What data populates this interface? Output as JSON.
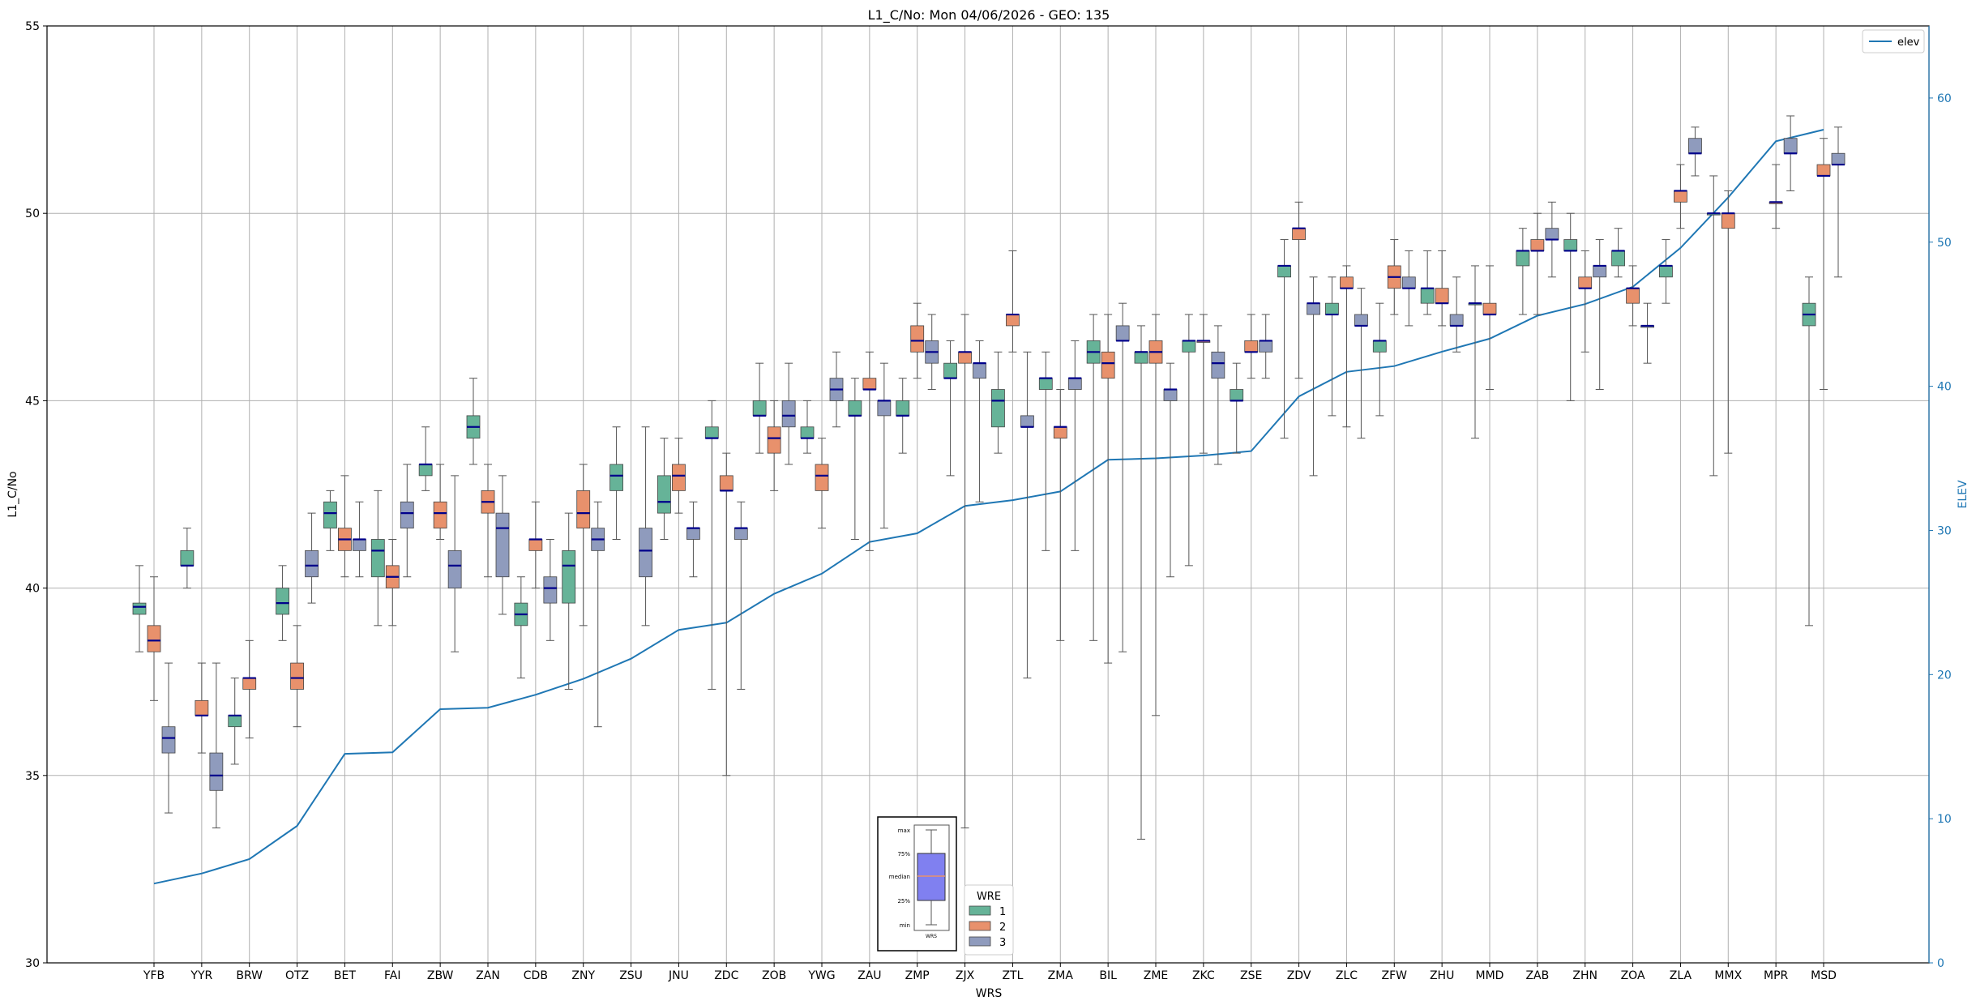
{
  "chart_data": {
    "type": "box",
    "title": "L1_C/No: Mon 04/06/2026 - GEO: 135",
    "xlabel": "WRS",
    "ylabel": "L1_C/No",
    "y2label": "ELEV",
    "ylim": [
      30,
      55
    ],
    "y2lim": [
      0,
      65
    ],
    "yticks": [
      30,
      35,
      40,
      45,
      50,
      55
    ],
    "y2ticks": [
      0,
      10,
      20,
      30,
      40,
      50,
      60
    ],
    "grid": true,
    "categories": [
      "YFB",
      "YYR",
      "BRW",
      "OTZ",
      "BET",
      "FAI",
      "ZBW",
      "ZAN",
      "CDB",
      "ZNY",
      "ZSU",
      "JNU",
      "ZDC",
      "ZOB",
      "YWG",
      "ZAU",
      "ZMP",
      "ZJX",
      "ZTL",
      "ZMA",
      "BIL",
      "ZME",
      "ZKC",
      "ZSE",
      "ZDV",
      "ZLC",
      "ZFW",
      "ZHU",
      "MMD",
      "ZAB",
      "ZHN",
      "ZOA",
      "ZLA",
      "MMX",
      "MPR",
      "MSD"
    ],
    "colors": {
      "1": "#66b398",
      "2": "#e8916c",
      "3": "#8f9bbd",
      "median": "#00008b",
      "elev": "#1f77b4"
    },
    "box_legend": {
      "title": "WRE",
      "entries": [
        "1",
        "2",
        "3"
      ]
    },
    "line_legend": {
      "entries": [
        "elev"
      ]
    },
    "key_labels": [
      "max",
      "75%",
      "median",
      "25%",
      "min"
    ],
    "key_xlabel": "WRS",
    "elev": [
      5.5,
      6.2,
      7.2,
      9.5,
      14.5,
      14.6,
      17.6,
      17.7,
      18.6,
      19.7,
      21.1,
      23.1,
      23.6,
      25.6,
      27.0,
      29.2,
      29.8,
      31.7,
      32.1,
      32.7,
      34.9,
      35.0,
      35.2,
      35.5,
      39.3,
      41.0,
      41.4,
      42.4,
      43.3,
      44.9,
      45.7,
      46.9,
      49.6,
      53.1,
      57.0,
      57.8
    ],
    "boxes": [
      {
        "wrs": "YFB",
        "wre": "1",
        "min": 38.3,
        "q1": 39.3,
        "median": 39.5,
        "q3": 39.6,
        "max": 40.6
      },
      {
        "wrs": "YFB",
        "wre": "2",
        "min": 37.0,
        "q1": 38.3,
        "median": 38.6,
        "q3": 39.0,
        "max": 40.3
      },
      {
        "wrs": "YFB",
        "wre": "3",
        "min": 34.0,
        "q1": 35.6,
        "median": 36.0,
        "q3": 36.3,
        "max": 38.0
      },
      {
        "wrs": "YYR",
        "wre": "1",
        "min": 40.0,
        "q1": 40.6,
        "median": 40.6,
        "q3": 41.0,
        "max": 41.6
      },
      {
        "wrs": "YYR",
        "wre": "2",
        "min": 35.6,
        "q1": 36.6,
        "median": 36.6,
        "q3": 37.0,
        "max": 38.0
      },
      {
        "wrs": "YYR",
        "wre": "3",
        "min": 33.6,
        "q1": 34.6,
        "median": 35.0,
        "q3": 35.6,
        "max": 38.0
      },
      {
        "wrs": "BRW",
        "wre": "1",
        "min": 35.3,
        "q1": 36.3,
        "median": 36.6,
        "q3": 36.6,
        "max": 37.6
      },
      {
        "wrs": "BRW",
        "wre": "2",
        "min": 36.0,
        "q1": 37.3,
        "median": 37.6,
        "q3": 37.6,
        "max": 38.6
      },
      {
        "wrs": "OTZ",
        "wre": "1",
        "min": 38.6,
        "q1": 39.3,
        "median": 39.6,
        "q3": 40.0,
        "max": 40.6
      },
      {
        "wrs": "OTZ",
        "wre": "2",
        "min": 36.3,
        "q1": 37.3,
        "median": 37.6,
        "q3": 38.0,
        "max": 39.0
      },
      {
        "wrs": "OTZ",
        "wre": "3",
        "min": 39.6,
        "q1": 40.3,
        "median": 40.6,
        "q3": 41.0,
        "max": 42.0
      },
      {
        "wrs": "BET",
        "wre": "1",
        "min": 41.0,
        "q1": 41.6,
        "median": 42.0,
        "q3": 42.3,
        "max": 42.6
      },
      {
        "wrs": "BET",
        "wre": "2",
        "min": 40.3,
        "q1": 41.0,
        "median": 41.3,
        "q3": 41.6,
        "max": 43.0
      },
      {
        "wrs": "BET",
        "wre": "3",
        "min": 40.3,
        "q1": 41.0,
        "median": 41.3,
        "q3": 41.3,
        "max": 42.3
      },
      {
        "wrs": "FAI",
        "wre": "1",
        "min": 39.0,
        "q1": 40.3,
        "median": 41.0,
        "q3": 41.3,
        "max": 42.6
      },
      {
        "wrs": "FAI",
        "wre": "2",
        "min": 39.0,
        "q1": 40.0,
        "median": 40.3,
        "q3": 40.6,
        "max": 41.3
      },
      {
        "wrs": "FAI",
        "wre": "3",
        "min": 40.3,
        "q1": 41.6,
        "median": 42.0,
        "q3": 42.3,
        "max": 43.3
      },
      {
        "wrs": "ZBW",
        "wre": "1",
        "min": 42.6,
        "q1": 43.0,
        "median": 43.3,
        "q3": 43.3,
        "max": 44.3
      },
      {
        "wrs": "ZBW",
        "wre": "2",
        "min": 41.3,
        "q1": 41.6,
        "median": 42.0,
        "q3": 42.3,
        "max": 43.3
      },
      {
        "wrs": "ZBW",
        "wre": "3",
        "min": 38.3,
        "q1": 40.0,
        "median": 40.6,
        "q3": 41.0,
        "max": 43.0
      },
      {
        "wrs": "ZAN",
        "wre": "1",
        "min": 43.3,
        "q1": 44.0,
        "median": 44.3,
        "q3": 44.6,
        "max": 45.6
      },
      {
        "wrs": "ZAN",
        "wre": "2",
        "min": 40.3,
        "q1": 42.0,
        "median": 42.3,
        "q3": 42.6,
        "max": 43.3
      },
      {
        "wrs": "ZAN",
        "wre": "3",
        "min": 39.3,
        "q1": 40.3,
        "median": 41.6,
        "q3": 42.0,
        "max": 43.0
      },
      {
        "wrs": "CDB",
        "wre": "1",
        "min": 37.6,
        "q1": 39.0,
        "median": 39.3,
        "q3": 39.6,
        "max": 40.3
      },
      {
        "wrs": "CDB",
        "wre": "2",
        "min": 40.0,
        "q1": 41.0,
        "median": 41.3,
        "q3": 41.3,
        "max": 42.3
      },
      {
        "wrs": "CDB",
        "wre": "3",
        "min": 38.6,
        "q1": 39.6,
        "median": 40.0,
        "q3": 40.3,
        "max": 41.3
      },
      {
        "wrs": "ZNY",
        "wre": "1",
        "min": 37.3,
        "q1": 39.6,
        "median": 40.6,
        "q3": 41.0,
        "max": 42.0
      },
      {
        "wrs": "ZNY",
        "wre": "2",
        "min": 39.0,
        "q1": 41.6,
        "median": 42.0,
        "q3": 42.6,
        "max": 43.3
      },
      {
        "wrs": "ZNY",
        "wre": "3",
        "min": 36.3,
        "q1": 41.0,
        "median": 41.3,
        "q3": 41.6,
        "max": 42.3
      },
      {
        "wrs": "ZSU",
        "wre": "1",
        "min": 41.3,
        "q1": 42.6,
        "median": 43.0,
        "q3": 43.3,
        "max": 44.3
      },
      {
        "wrs": "ZSU",
        "wre": "3",
        "min": 39.0,
        "q1": 40.3,
        "median": 41.0,
        "q3": 41.6,
        "max": 44.3
      },
      {
        "wrs": "JNU",
        "wre": "1",
        "min": 41.3,
        "q1": 42.0,
        "median": 42.3,
        "q3": 43.0,
        "max": 44.0
      },
      {
        "wrs": "JNU",
        "wre": "2",
        "min": 42.0,
        "q1": 42.6,
        "median": 43.0,
        "q3": 43.3,
        "max": 44.0
      },
      {
        "wrs": "JNU",
        "wre": "3",
        "min": 40.3,
        "q1": 41.3,
        "median": 41.6,
        "q3": 41.6,
        "max": 42.3
      },
      {
        "wrs": "ZDC",
        "wre": "1",
        "min": 37.3,
        "q1": 44.0,
        "median": 44.0,
        "q3": 44.3,
        "max": 45.0
      },
      {
        "wrs": "ZDC",
        "wre": "2",
        "min": 35.0,
        "q1": 42.6,
        "median": 42.6,
        "q3": 43.0,
        "max": 43.6
      },
      {
        "wrs": "ZDC",
        "wre": "3",
        "min": 37.3,
        "q1": 41.3,
        "median": 41.6,
        "q3": 41.6,
        "max": 42.3
      },
      {
        "wrs": "ZOB",
        "wre": "1",
        "min": 43.6,
        "q1": 44.6,
        "median": 44.6,
        "q3": 45.0,
        "max": 46.0
      },
      {
        "wrs": "ZOB",
        "wre": "2",
        "min": 42.6,
        "q1": 43.6,
        "median": 44.0,
        "q3": 44.3,
        "max": 45.0
      },
      {
        "wrs": "ZOB",
        "wre": "3",
        "min": 43.3,
        "q1": 44.3,
        "median": 44.6,
        "q3": 45.0,
        "max": 46.0
      },
      {
        "wrs": "YWG",
        "wre": "1",
        "min": 43.6,
        "q1": 44.0,
        "median": 44.0,
        "q3": 44.3,
        "max": 45.0
      },
      {
        "wrs": "YWG",
        "wre": "2",
        "min": 41.6,
        "q1": 42.6,
        "median": 43.0,
        "q3": 43.3,
        "max": 44.0
      },
      {
        "wrs": "YWG",
        "wre": "3",
        "min": 44.3,
        "q1": 45.0,
        "median": 45.3,
        "q3": 45.6,
        "max": 46.3
      },
      {
        "wrs": "ZAU",
        "wre": "1",
        "min": 41.3,
        "q1": 44.6,
        "median": 44.6,
        "q3": 45.0,
        "max": 45.6
      },
      {
        "wrs": "ZAU",
        "wre": "2",
        "min": 41.0,
        "q1": 45.3,
        "median": 45.3,
        "q3": 45.6,
        "max": 46.3
      },
      {
        "wrs": "ZAU",
        "wre": "3",
        "min": 41.6,
        "q1": 44.6,
        "median": 45.0,
        "q3": 45.0,
        "max": 46.0
      },
      {
        "wrs": "ZMP",
        "wre": "1",
        "min": 43.6,
        "q1": 44.6,
        "median": 44.6,
        "q3": 45.0,
        "max": 45.6
      },
      {
        "wrs": "ZMP",
        "wre": "2",
        "min": 45.6,
        "q1": 46.3,
        "median": 46.6,
        "q3": 47.0,
        "max": 47.6
      },
      {
        "wrs": "ZMP",
        "wre": "3",
        "min": 45.3,
        "q1": 46.0,
        "median": 46.3,
        "q3": 46.6,
        "max": 47.3
      },
      {
        "wrs": "ZJX",
        "wre": "1",
        "min": 43.0,
        "q1": 45.6,
        "median": 45.6,
        "q3": 46.0,
        "max": 46.6
      },
      {
        "wrs": "ZJX",
        "wre": "2",
        "min": 33.6,
        "q1": 46.0,
        "median": 46.3,
        "q3": 46.3,
        "max": 47.3
      },
      {
        "wrs": "ZJX",
        "wre": "3",
        "min": 42.3,
        "q1": 45.6,
        "median": 46.0,
        "q3": 46.0,
        "max": 46.6
      },
      {
        "wrs": "ZTL",
        "wre": "1",
        "min": 43.6,
        "q1": 44.3,
        "median": 45.0,
        "q3": 45.3,
        "max": 46.3
      },
      {
        "wrs": "ZTL",
        "wre": "2",
        "min": 46.3,
        "q1": 47.0,
        "median": 47.3,
        "q3": 47.3,
        "max": 49.0
      },
      {
        "wrs": "ZTL",
        "wre": "3",
        "min": 37.6,
        "q1": 44.3,
        "median": 44.3,
        "q3": 44.6,
        "max": 46.3
      },
      {
        "wrs": "ZMA",
        "wre": "1",
        "min": 41.0,
        "q1": 45.3,
        "median": 45.6,
        "q3": 45.6,
        "max": 46.3
      },
      {
        "wrs": "ZMA",
        "wre": "2",
        "min": 38.6,
        "q1": 44.0,
        "median": 44.3,
        "q3": 44.3,
        "max": 45.3
      },
      {
        "wrs": "ZMA",
        "wre": "3",
        "min": 41.0,
        "q1": 45.3,
        "median": 45.6,
        "q3": 45.6,
        "max": 46.6
      },
      {
        "wrs": "BIL",
        "wre": "1",
        "min": 38.6,
        "q1": 46.0,
        "median": 46.3,
        "q3": 46.6,
        "max": 47.3
      },
      {
        "wrs": "BIL",
        "wre": "2",
        "min": 38.0,
        "q1": 45.6,
        "median": 46.0,
        "q3": 46.3,
        "max": 47.3
      },
      {
        "wrs": "BIL",
        "wre": "3",
        "min": 38.3,
        "q1": 46.6,
        "median": 46.6,
        "q3": 47.0,
        "max": 47.6
      },
      {
        "wrs": "ZME",
        "wre": "1",
        "min": 33.3,
        "q1": 46.0,
        "median": 46.3,
        "q3": 46.3,
        "max": 47.0
      },
      {
        "wrs": "ZME",
        "wre": "2",
        "min": 36.6,
        "q1": 46.0,
        "median": 46.3,
        "q3": 46.6,
        "max": 47.3
      },
      {
        "wrs": "ZME",
        "wre": "3",
        "min": 40.3,
        "q1": 45.0,
        "median": 45.3,
        "q3": 45.3,
        "max": 46.0
      },
      {
        "wrs": "ZKC",
        "wre": "1",
        "min": 40.6,
        "q1": 46.3,
        "median": 46.6,
        "q3": 46.6,
        "max": 47.3
      },
      {
        "wrs": "ZKC",
        "wre": "2",
        "min": 43.6,
        "q1": 46.6,
        "median": 46.6,
        "q3": 46.6,
        "max": 47.3
      },
      {
        "wrs": "ZKC",
        "wre": "3",
        "min": 43.3,
        "q1": 45.6,
        "median": 46.0,
        "q3": 46.3,
        "max": 47.0
      },
      {
        "wrs": "ZSE",
        "wre": "1",
        "min": 43.6,
        "q1": 45.0,
        "median": 45.0,
        "q3": 45.3,
        "max": 46.0
      },
      {
        "wrs": "ZSE",
        "wre": "2",
        "min": 45.6,
        "q1": 46.3,
        "median": 46.3,
        "q3": 46.6,
        "max": 47.3
      },
      {
        "wrs": "ZSE",
        "wre": "3",
        "min": 45.6,
        "q1": 46.3,
        "median": 46.6,
        "q3": 46.6,
        "max": 47.3
      },
      {
        "wrs": "ZDV",
        "wre": "1",
        "min": 44.0,
        "q1": 48.3,
        "median": 48.6,
        "q3": 48.6,
        "max": 49.3
      },
      {
        "wrs": "ZDV",
        "wre": "2",
        "min": 45.6,
        "q1": 49.3,
        "median": 49.6,
        "q3": 49.6,
        "max": 50.3
      },
      {
        "wrs": "ZDV",
        "wre": "3",
        "min": 43.0,
        "q1": 47.3,
        "median": 47.6,
        "q3": 47.6,
        "max": 48.3
      },
      {
        "wrs": "ZLC",
        "wre": "1",
        "min": 44.6,
        "q1": 47.3,
        "median": 47.3,
        "q3": 47.6,
        "max": 48.3
      },
      {
        "wrs": "ZLC",
        "wre": "2",
        "min": 44.3,
        "q1": 48.0,
        "median": 48.0,
        "q3": 48.3,
        "max": 48.6
      },
      {
        "wrs": "ZLC",
        "wre": "3",
        "min": 44.0,
        "q1": 47.0,
        "median": 47.0,
        "q3": 47.3,
        "max": 48.0
      },
      {
        "wrs": "ZFW",
        "wre": "1",
        "min": 44.6,
        "q1": 46.3,
        "median": 46.6,
        "q3": 46.6,
        "max": 47.6
      },
      {
        "wrs": "ZFW",
        "wre": "2",
        "min": 47.3,
        "q1": 48.0,
        "median": 48.3,
        "q3": 48.6,
        "max": 49.3
      },
      {
        "wrs": "ZFW",
        "wre": "3",
        "min": 47.0,
        "q1": 48.0,
        "median": 48.0,
        "q3": 48.3,
        "max": 49.0
      },
      {
        "wrs": "ZHU",
        "wre": "1",
        "min": 47.3,
        "q1": 47.6,
        "median": 48.0,
        "q3": 48.0,
        "max": 49.0
      },
      {
        "wrs": "ZHU",
        "wre": "2",
        "min": 47.0,
        "q1": 47.6,
        "median": 47.6,
        "q3": 48.0,
        "max": 49.0
      },
      {
        "wrs": "ZHU",
        "wre": "3",
        "min": 46.3,
        "q1": 47.0,
        "median": 47.0,
        "q3": 47.3,
        "max": 48.3
      },
      {
        "wrs": "MMD",
        "wre": "1",
        "min": 44.0,
        "q1": 47.6,
        "median": 47.6,
        "q3": 47.6,
        "max": 48.6
      },
      {
        "wrs": "MMD",
        "wre": "2",
        "min": 45.3,
        "q1": 47.3,
        "median": 47.3,
        "q3": 47.6,
        "max": 48.6
      },
      {
        "wrs": "ZAB",
        "wre": "1",
        "min": 47.3,
        "q1": 48.6,
        "median": 49.0,
        "q3": 49.0,
        "max": 49.6
      },
      {
        "wrs": "ZAB",
        "wre": "2",
        "min": 47.3,
        "q1": 49.0,
        "median": 49.0,
        "q3": 49.3,
        "max": 50.0
      },
      {
        "wrs": "ZAB",
        "wre": "3",
        "min": 48.3,
        "q1": 49.3,
        "median": 49.3,
        "q3": 49.6,
        "max": 50.3
      },
      {
        "wrs": "ZHN",
        "wre": "1",
        "min": 45.0,
        "q1": 49.0,
        "median": 49.0,
        "q3": 49.3,
        "max": 50.0
      },
      {
        "wrs": "ZHN",
        "wre": "2",
        "min": 46.3,
        "q1": 48.0,
        "median": 48.0,
        "q3": 48.3,
        "max": 49.0
      },
      {
        "wrs": "ZHN",
        "wre": "3",
        "min": 45.3,
        "q1": 48.3,
        "median": 48.6,
        "q3": 48.6,
        "max": 49.3
      },
      {
        "wrs": "ZOA",
        "wre": "1",
        "min": 48.3,
        "q1": 48.6,
        "median": 49.0,
        "q3": 49.0,
        "max": 49.6
      },
      {
        "wrs": "ZOA",
        "wre": "2",
        "min": 47.0,
        "q1": 47.6,
        "median": 48.0,
        "q3": 48.0,
        "max": 48.6
      },
      {
        "wrs": "ZOA",
        "wre": "3",
        "min": 46.0,
        "q1": 47.0,
        "median": 47.0,
        "q3": 47.0,
        "max": 47.6
      },
      {
        "wrs": "ZLA",
        "wre": "1",
        "min": 47.6,
        "q1": 48.3,
        "median": 48.6,
        "q3": 48.6,
        "max": 49.3
      },
      {
        "wrs": "ZLA",
        "wre": "2",
        "min": 49.6,
        "q1": 50.3,
        "median": 50.6,
        "q3": 50.6,
        "max": 51.3
      },
      {
        "wrs": "ZLA",
        "wre": "3",
        "min": 51.0,
        "q1": 51.6,
        "median": 51.6,
        "q3": 52.0,
        "max": 52.3
      },
      {
        "wrs": "MMX",
        "wre": "1",
        "min": 43.0,
        "q1": 50.0,
        "median": 50.0,
        "q3": 50.0,
        "max": 51.0
      },
      {
        "wrs": "MMX",
        "wre": "2",
        "min": 43.6,
        "q1": 49.6,
        "median": 50.0,
        "q3": 50.0,
        "max": 50.6
      },
      {
        "wrs": "MPR",
        "wre": "2",
        "min": 49.6,
        "q1": 50.3,
        "median": 50.3,
        "q3": 50.3,
        "max": 51.3
      },
      {
        "wrs": "MPR",
        "wre": "3",
        "min": 50.6,
        "q1": 51.6,
        "median": 51.6,
        "q3": 52.0,
        "max": 52.6
      },
      {
        "wrs": "MSD",
        "wre": "1",
        "min": 39.0,
        "q1": 47.0,
        "median": 47.3,
        "q3": 47.6,
        "max": 48.3
      },
      {
        "wrs": "MSD",
        "wre": "2",
        "min": 45.3,
        "q1": 51.0,
        "median": 51.0,
        "q3": 51.3,
        "max": 52.0
      },
      {
        "wrs": "MSD",
        "wre": "3",
        "min": 48.3,
        "q1": 51.3,
        "median": 51.3,
        "q3": 51.6,
        "max": 52.3
      }
    ]
  }
}
